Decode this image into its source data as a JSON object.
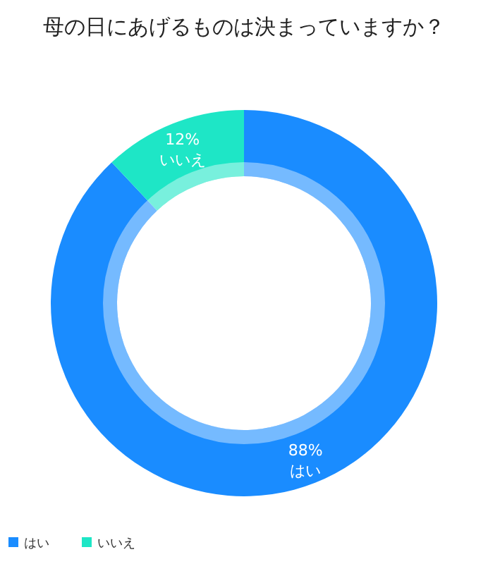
{
  "chart_data": {
    "type": "donut",
    "title": "母の日にあげるものは決まっていますか？",
    "categories": [
      "はい",
      "いいえ"
    ],
    "values": [
      88,
      12
    ],
    "colors": [
      "#1a8cff",
      "#1ee6c6"
    ],
    "value_labels": [
      "88%",
      "12%"
    ],
    "legend": "bottom left"
  }
}
